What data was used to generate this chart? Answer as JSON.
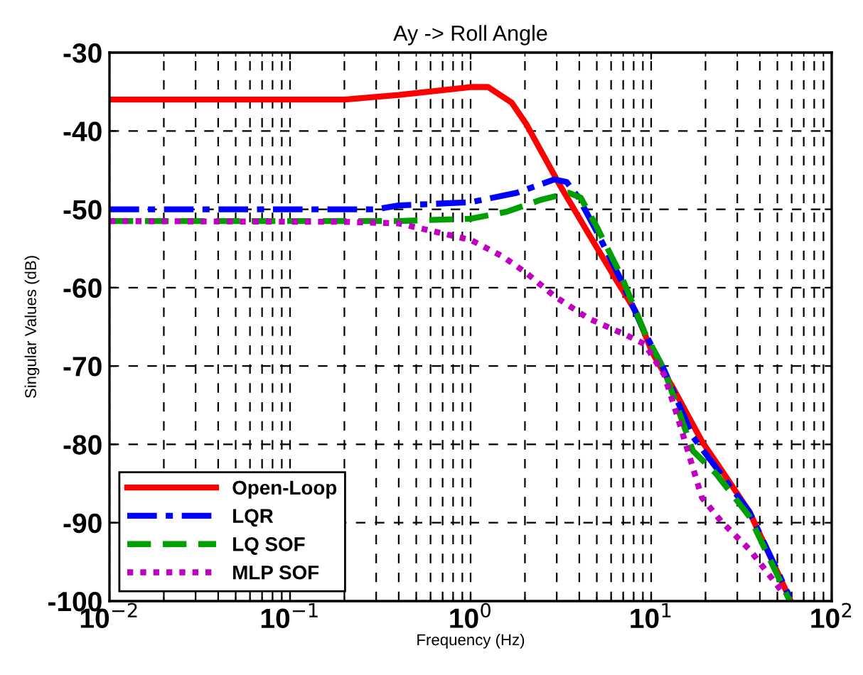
{
  "chart_data": {
    "type": "line",
    "title": "Ay -> Roll Angle",
    "xlabel": "Frequency (Hz)",
    "ylabel": "Singular Values (dB)",
    "log": "x",
    "grid": true,
    "legend": "bottom left",
    "xlim": [
      0.01,
      100
    ],
    "xticks": [
      {
        "value": 0.01,
        "label": "10$^{−2}$"
      },
      {
        "value": 0.1,
        "label": "10$^{−1}$"
      },
      {
        "value": 1,
        "label": "10$^{0}$"
      },
      {
        "value": 10,
        "label": "10$^{1}$"
      },
      {
        "value": 100,
        "label": "10$^{2}$"
      }
    ],
    "ylim": [
      -100,
      -30
    ],
    "yticks": [
      -100,
      -90,
      -80,
      -70,
      -60,
      -50,
      -40,
      -30
    ],
    "series": [
      {
        "name": "Open-Loop",
        "color": "#ff0000",
        "line_style": "solid",
        "x": [
          0.01,
          0.2,
          0.4,
          1.0,
          1.25,
          1.69,
          2.03,
          3.1,
          4.47,
          6.4,
          8.2,
          10.2,
          13.3,
          19.1,
          24.4,
          35,
          59.4
        ],
        "values": [
          -36,
          -36,
          -35.4,
          -34.4,
          -34.4,
          -36.4,
          -39.1,
          -46.8,
          -53,
          -59,
          -63,
          -68.4,
          -72.9,
          -79.6,
          -83.2,
          -88.6,
          -100
        ]
      },
      {
        "name": "LQR",
        "color": "#0000ff",
        "line_style": "dashdot",
        "x": [
          0.01,
          0.3,
          0.4,
          1.0,
          1.8,
          2.9,
          3.4,
          3.96,
          5.04,
          6.8,
          9.2,
          11.8,
          17.0,
          24.4,
          35,
          58.6
        ],
        "values": [
          -50,
          -50,
          -49.5,
          -49.1,
          -47.9,
          -46.2,
          -46.5,
          -48.5,
          -53,
          -59,
          -65.7,
          -70.5,
          -79,
          -83.8,
          -88.6,
          -99.5
        ]
      },
      {
        "name": "LQ SOF",
        "color": "#00a000",
        "line_style": "dashed",
        "x": [
          0.01,
          0.4,
          1.0,
          1.59,
          2.44,
          3.5,
          4.07,
          5.04,
          6.8,
          9.2,
          11.8,
          17.0,
          23.0,
          35,
          58.6
        ],
        "values": [
          -51.5,
          -51.5,
          -51.2,
          -50.3,
          -48.8,
          -47.9,
          -48.5,
          -52.4,
          -58.4,
          -65.7,
          -70.5,
          -80.8,
          -83.8,
          -89.2,
          -100
        ]
      },
      {
        "name": "MLP SOF",
        "color": "#c000c0",
        "line_style": "dotted",
        "x": [
          0.01,
          0.2,
          0.4,
          1.0,
          1.5,
          2.03,
          2.92,
          4.47,
          7.2,
          9.2,
          11.8,
          14.1,
          19.1,
          24.4,
          35,
          53.6
        ],
        "values": [
          -51.5,
          -51.6,
          -51.8,
          -53.9,
          -56,
          -58.1,
          -61.1,
          -63.9,
          -66,
          -67.2,
          -71.1,
          -76.7,
          -86.8,
          -89.8,
          -93.4,
          -98.9
        ]
      }
    ]
  }
}
